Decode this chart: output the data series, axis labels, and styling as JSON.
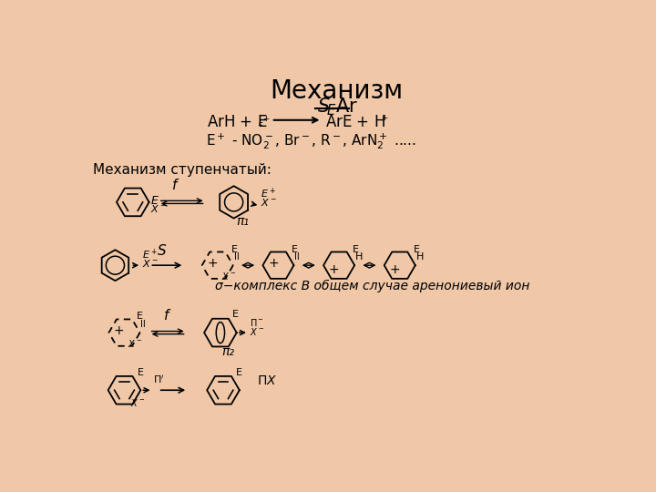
{
  "bg_color": "#F0C8A8",
  "title": "Механизм",
  "mech_label": "Механизм ступенчатый:",
  "sigma_label": "σ−комплекс В общем случае аренониевый ион",
  "pi1_label": "π₁",
  "pi2_label": "π₂",
  "lw_ring": 1.3,
  "lw_arrow": 1.2
}
